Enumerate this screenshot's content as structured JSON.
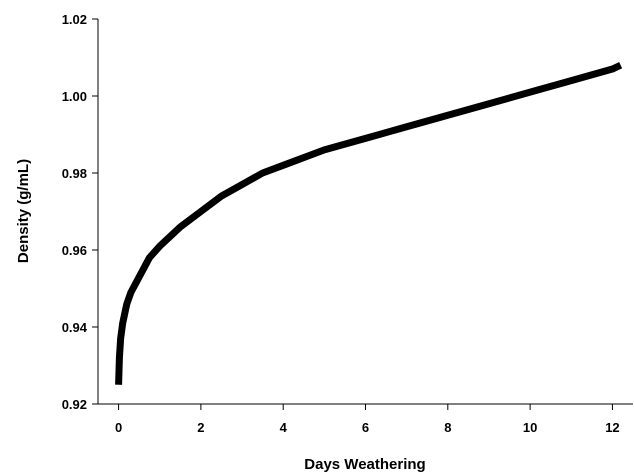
{
  "chart_data": {
    "type": "line",
    "title": "",
    "xlabel": "Days Weathering",
    "ylabel": "Density (g/mL)",
    "xlim": [
      -0.5,
      12.5
    ],
    "ylim": [
      0.92,
      1.02
    ],
    "x_ticks": [
      0,
      2,
      4,
      6,
      8,
      10,
      12
    ],
    "y_ticks": [
      0.92,
      0.94,
      0.96,
      0.98,
      1.0,
      1.02
    ],
    "x_tick_labels": [
      "0",
      "2",
      "4",
      "6",
      "8",
      "10",
      "12"
    ],
    "y_tick_labels": [
      "0.92",
      "0.94",
      "0.96",
      "0.98",
      "1.00",
      "1.02"
    ],
    "grid": false,
    "series": [
      {
        "color": "#000000",
        "x": [
          0,
          0.02,
          0.05,
          0.1,
          0.2,
          0.3,
          0.5,
          0.75,
          1,
          1.5,
          2,
          2.5,
          3,
          3.5,
          4,
          5,
          6,
          7,
          8,
          9,
          10,
          11,
          12,
          12.1,
          12.2
        ],
        "y": [
          0.925,
          0.932,
          0.937,
          0.941,
          0.946,
          0.949,
          0.953,
          0.958,
          0.961,
          0.966,
          0.97,
          0.974,
          0.977,
          0.98,
          0.982,
          0.986,
          0.989,
          0.992,
          0.995,
          0.998,
          1.001,
          1.004,
          1.007,
          1.0075,
          1.008
        ]
      }
    ]
  }
}
